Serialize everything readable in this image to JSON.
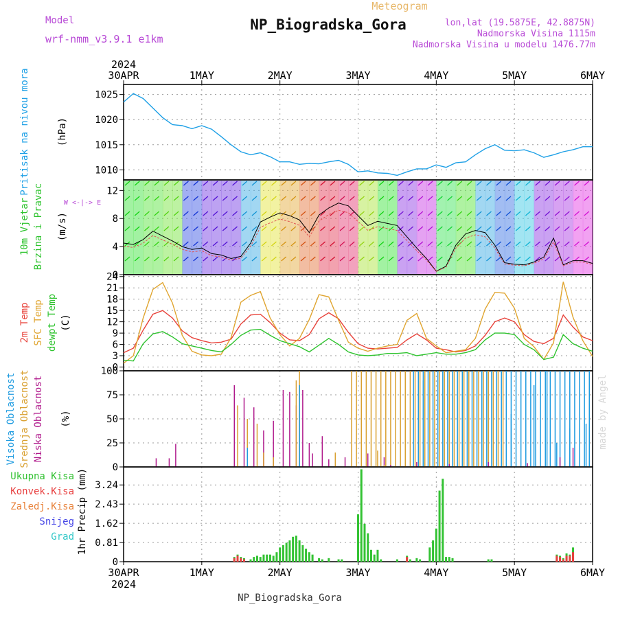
{
  "header": {
    "model_label": "Model",
    "model_name": "wrf-nmm_v3.9.1 e1km",
    "product": "Meteogram",
    "station": "NP_Biogradska_Gora",
    "coords": "lon,lat (19.5875E, 42.8875N)",
    "elevation": "Nadmorska Visina 1115m",
    "model_elevation": "Nadmorska Visina u modelu 1476.77m",
    "footer_station": "NP_Biogradska_Gora",
    "credit": "made by Angel"
  },
  "colors": {
    "pressure": "#1ea0e6",
    "temp2m": "#e8423a",
    "sfc_temp": "#e0a530",
    "dewpoint": "#2ec32e",
    "wind_speed": "#000000",
    "cloud_high": "#1e9be0",
    "cloud_mid": "#d9a030",
    "cloud_low": "#b01a8c",
    "precip_total": "#33c233",
    "precip_conv": "#e84040",
    "precip_frozen": "#e8823a",
    "snow": "#4646e6",
    "hail": "#33c8c8",
    "wind_dir_label": "#b84ad6"
  },
  "time_axis": {
    "year": "2024",
    "ticks": [
      "30APR",
      "1MAY",
      "2MAY",
      "3MAY",
      "4MAY",
      "5MAY",
      "6MAY"
    ]
  },
  "chart_data": [
    {
      "type": "line",
      "id": "pressure",
      "ylabel_title": "Pritisak na nivou mora",
      "units": "(hPa)",
      "ylim": [
        1008,
        1027
      ],
      "yticks": [
        1010,
        1015,
        1020,
        1025
      ],
      "x_unit": "hours from 30APR 00UTC",
      "x": [
        0,
        3,
        6,
        9,
        12,
        15,
        18,
        21,
        24,
        27,
        30,
        33,
        36,
        39,
        42,
        45,
        48,
        51,
        54,
        57,
        60,
        63,
        66,
        69,
        72,
        75,
        78,
        81,
        84,
        87,
        90,
        93,
        96,
        99,
        102,
        105,
        108,
        111,
        114,
        117,
        120,
        123,
        126,
        129,
        132,
        135,
        138,
        141,
        144
      ],
      "values": [
        1023.5,
        1025.2,
        1024.2,
        1022.3,
        1020.4,
        1019.0,
        1018.8,
        1018.2,
        1018.8,
        1018.1,
        1016.6,
        1015.0,
        1013.6,
        1013.0,
        1013.4,
        1012.6,
        1011.6,
        1011.6,
        1011.1,
        1011.3,
        1011.2,
        1011.6,
        1011.9,
        1011.1,
        1009.6,
        1009.8,
        1009.4,
        1009.3,
        1008.9,
        1009.6,
        1010.2,
        1010.2,
        1011.0,
        1010.5,
        1011.4,
        1011.6,
        1013.0,
        1014.2,
        1015.0,
        1013.9,
        1013.8,
        1014.0,
        1013.4,
        1012.5,
        1013.0,
        1013.6,
        1014.0,
        1014.6,
        1014.6
      ]
    },
    {
      "type": "line",
      "id": "wind",
      "ylabel_title": "10m Vjetar",
      "ylabel_sub": "Brzina i Pravac",
      "units": "(m/s)",
      "dir_legend": "W <-|-> E",
      "ylim": [
        0,
        13.5
      ],
      "yticks": [
        0,
        4,
        8,
        12
      ],
      "x_unit": "hours from 30APR 00UTC",
      "x": [
        0,
        3,
        6,
        9,
        12,
        15,
        18,
        21,
        24,
        27,
        30,
        33,
        36,
        39,
        42,
        45,
        48,
        51,
        54,
        57,
        60,
        63,
        66,
        69,
        72,
        75,
        78,
        81,
        84,
        87,
        90,
        93,
        96,
        99,
        102,
        105,
        108,
        111,
        114,
        117,
        120,
        123,
        126,
        129,
        132,
        135,
        138,
        141,
        144
      ],
      "series": [
        {
          "name": "speed",
          "values": [
            4.5,
            4.3,
            5.0,
            6.2,
            5.5,
            4.8,
            4.0,
            3.6,
            3.8,
            3.0,
            2.8,
            2.3,
            2.6,
            4.5,
            7.5,
            8.2,
            8.8,
            8.4,
            7.8,
            6.0,
            8.5,
            9.5,
            10.2,
            9.8,
            8.4,
            7.0,
            7.6,
            7.3,
            7.0,
            5.4,
            3.8,
            2.3,
            0.5,
            1.2,
            4.2,
            5.8,
            6.3,
            6.0,
            4.2,
            1.7,
            1.5,
            1.4,
            1.8,
            2.5,
            5.2,
            1.4,
            2.0,
            2.0,
            1.6
          ]
        }
      ]
    },
    {
      "type": "line",
      "id": "temperature",
      "ylabel_title": "2m Temp",
      "ylabel_sub": "SFC Temp",
      "ylabel_sub2": "dewpt Temp",
      "units": "(C)",
      "ylim": [
        -1,
        24.5
      ],
      "yticks": [
        0,
        3,
        6,
        9,
        12,
        15,
        18,
        21,
        24
      ],
      "x_unit": "hours from 30APR 00UTC",
      "x": [
        0,
        3,
        6,
        9,
        12,
        15,
        18,
        21,
        24,
        27,
        30,
        33,
        36,
        39,
        42,
        45,
        48,
        51,
        54,
        57,
        60,
        63,
        66,
        69,
        72,
        75,
        78,
        81,
        84,
        87,
        90,
        93,
        96,
        99,
        102,
        105,
        108,
        111,
        114,
        117,
        120,
        123,
        126,
        129,
        132,
        135,
        138,
        141,
        144
      ],
      "series": [
        {
          "name": "2m Temp",
          "values": [
            3.8,
            5.0,
            9.8,
            14.0,
            15.0,
            13.0,
            9.6,
            7.8,
            7.0,
            6.4,
            6.6,
            7.4,
            11.4,
            13.8,
            14.0,
            11.8,
            9.0,
            7.2,
            7.0,
            8.6,
            12.8,
            14.4,
            12.8,
            9.2,
            6.2,
            5.0,
            4.8,
            5.0,
            5.2,
            7.2,
            8.8,
            7.2,
            5.0,
            4.6,
            4.0,
            4.4,
            5.6,
            8.4,
            12.0,
            13.0,
            12.0,
            8.6,
            6.8,
            6.2,
            7.6,
            13.8,
            10.6,
            8.0,
            7.0
          ]
        },
        {
          "name": "SFC Temp",
          "values": [
            1.0,
            3.0,
            13.0,
            20.6,
            22.4,
            17.0,
            8.4,
            4.2,
            3.2,
            3.0,
            3.4,
            7.8,
            17.2,
            19.0,
            20.0,
            13.0,
            8.6,
            5.6,
            7.6,
            12.6,
            19.2,
            18.6,
            12.4,
            6.6,
            5.0,
            4.2,
            5.0,
            5.6,
            6.0,
            12.4,
            14.2,
            7.6,
            5.6,
            3.8,
            4.2,
            4.6,
            7.6,
            15.4,
            19.8,
            19.6,
            15.6,
            7.6,
            5.4,
            2.0,
            6.4,
            22.6,
            13.2,
            7.0,
            2.8
          ]
        },
        {
          "name": "dewpt Temp",
          "values": [
            1.8,
            1.6,
            6.2,
            8.8,
            9.4,
            8.0,
            6.2,
            5.6,
            5.0,
            4.4,
            4.0,
            6.0,
            8.4,
            9.8,
            10.0,
            8.4,
            7.0,
            6.2,
            5.4,
            4.0,
            5.8,
            7.6,
            6.0,
            4.0,
            3.2,
            3.0,
            3.2,
            3.6,
            3.6,
            3.8,
            3.0,
            3.4,
            3.8,
            3.4,
            3.4,
            3.8,
            4.6,
            7.2,
            9.0,
            9.0,
            8.6,
            6.0,
            4.6,
            2.0,
            2.6,
            8.6,
            6.2,
            5.0,
            4.2
          ]
        }
      ]
    },
    {
      "type": "bar",
      "id": "clouds",
      "ylabel_title": "Visoka Oblacnost",
      "ylabel_sub": "Srednja Oblacnost",
      "ylabel_sub2": "Niska Oblacnost",
      "units": "(%)",
      "ylim": [
        0,
        100
      ],
      "yticks": [
        0,
        25,
        50,
        75,
        100
      ],
      "x_unit": "hours from 30APR 00UTC",
      "series": [
        {
          "name": "Niska Oblacnost",
          "points": [
            [
              10,
              9
            ],
            [
              14,
              9
            ],
            [
              16,
              24
            ],
            [
              34,
              85
            ],
            [
              37,
              72
            ],
            [
              40,
              62
            ],
            [
              43,
              38
            ],
            [
              46,
              48
            ],
            [
              49,
              80
            ],
            [
              51,
              78
            ],
            [
              53,
              64
            ],
            [
              55,
              80
            ],
            [
              57,
              25
            ],
            [
              58,
              14
            ],
            [
              61,
              32
            ],
            [
              63,
              8
            ],
            [
              68,
              10
            ],
            [
              75,
              14
            ],
            [
              80,
              10
            ],
            [
              82,
              2
            ],
            [
              90,
              5
            ],
            [
              100,
              3
            ],
            [
              112,
              5
            ],
            [
              124,
              4
            ],
            [
              134,
              10
            ],
            [
              138,
              20
            ]
          ]
        },
        {
          "name": "Srednja Oblacnost",
          "points": [
            [
              35,
              64
            ],
            [
              38,
              50
            ],
            [
              41,
              45
            ],
            [
              43,
              15
            ],
            [
              46,
              10
            ],
            [
              53,
              90
            ],
            [
              54,
              100
            ],
            [
              65,
              15
            ],
            [
              78,
              17
            ],
            [
              80,
              2
            ]
          ]
        },
        {
          "name": "Visoka Oblacnost",
          "points": [
            [
              38,
              20
            ],
            [
              54,
              85
            ],
            [
              92,
              90
            ],
            [
              110,
              70
            ],
            [
              119,
              55
            ],
            [
              126,
              85
            ],
            [
              130,
              100
            ],
            [
              133,
              25
            ],
            [
              137,
              40
            ],
            [
              142,
              45
            ]
          ]
        }
      ],
      "dense_blocks": [
        {
          "name": "Srednja Oblacnost",
          "range": [
            70,
            117
          ],
          "value": 100
        },
        {
          "name": "Visoka Oblacnost",
          "range": [
            89,
            144
          ],
          "value": 100
        }
      ]
    },
    {
      "type": "bar",
      "id": "precip",
      "ylabel_title": "1hr Precip (mm)",
      "legend": [
        "Ukupna Kisa",
        "Konvek.Kisa",
        "Zaledj.Kisa",
        "Snijeg",
        "Grad"
      ],
      "ylim": [
        0,
        4.0
      ],
      "yticks": [
        0,
        0.81,
        1.62,
        2.43,
        3.24
      ],
      "ytick_labels": [
        "0",
        "0.81",
        "1.62",
        "2.43",
        "3.24"
      ],
      "x_unit": "hours from 30APR 00UTC",
      "series": [
        {
          "name": "Ukupna Kisa",
          "points": [
            [
              34,
              0.2
            ],
            [
              35,
              0.3
            ],
            [
              36,
              0.2
            ],
            [
              37,
              0.15
            ],
            [
              39,
              0.1
            ],
            [
              40,
              0.2
            ],
            [
              41,
              0.25
            ],
            [
              42,
              0.2
            ],
            [
              43,
              0.3
            ],
            [
              44,
              0.3
            ],
            [
              45,
              0.3
            ],
            [
              46,
              0.25
            ],
            [
              47,
              0.4
            ],
            [
              48,
              0.6
            ],
            [
              49,
              0.7
            ],
            [
              50,
              0.8
            ],
            [
              51,
              0.9
            ],
            [
              52,
              1.05
            ],
            [
              53,
              1.1
            ],
            [
              54,
              0.9
            ],
            [
              55,
              0.7
            ],
            [
              56,
              0.55
            ],
            [
              57,
              0.4
            ],
            [
              58,
              0.3
            ],
            [
              60,
              0.15
            ],
            [
              61,
              0.1
            ],
            [
              63,
              0.15
            ],
            [
              66,
              0.1
            ],
            [
              67,
              0.1
            ],
            [
              72,
              2.0
            ],
            [
              73,
              3.9
            ],
            [
              74,
              1.6
            ],
            [
              75,
              1.2
            ],
            [
              76,
              0.5
            ],
            [
              77,
              0.3
            ],
            [
              78,
              0.5
            ],
            [
              79,
              0.1
            ],
            [
              84,
              0.1
            ],
            [
              87,
              0.25
            ],
            [
              88,
              0.1
            ],
            [
              90,
              0.15
            ],
            [
              91,
              0.1
            ],
            [
              94,
              0.6
            ],
            [
              95,
              0.9
            ],
            [
              96,
              1.4
            ],
            [
              97,
              3.0
            ],
            [
              98,
              3.5
            ],
            [
              99,
              0.2
            ],
            [
              100,
              0.2
            ],
            [
              101,
              0.15
            ],
            [
              112,
              0.1
            ],
            [
              113,
              0.1
            ],
            [
              133,
              0.3
            ],
            [
              134,
              0.25
            ],
            [
              135,
              0.15
            ],
            [
              136,
              0.35
            ],
            [
              137,
              0.3
            ],
            [
              138,
              0.6
            ]
          ]
        },
        {
          "name": "Konvek.Kisa",
          "points": [
            [
              34,
              0.15
            ],
            [
              35,
              0.25
            ],
            [
              36,
              0.15
            ],
            [
              37,
              0.1
            ],
            [
              87,
              0.2
            ],
            [
              133,
              0.25
            ],
            [
              134,
              0.2
            ],
            [
              135,
              0.1
            ],
            [
              136,
              0.25
            ],
            [
              137,
              0.25
            ],
            [
              138,
              0.4
            ]
          ]
        }
      ]
    }
  ]
}
